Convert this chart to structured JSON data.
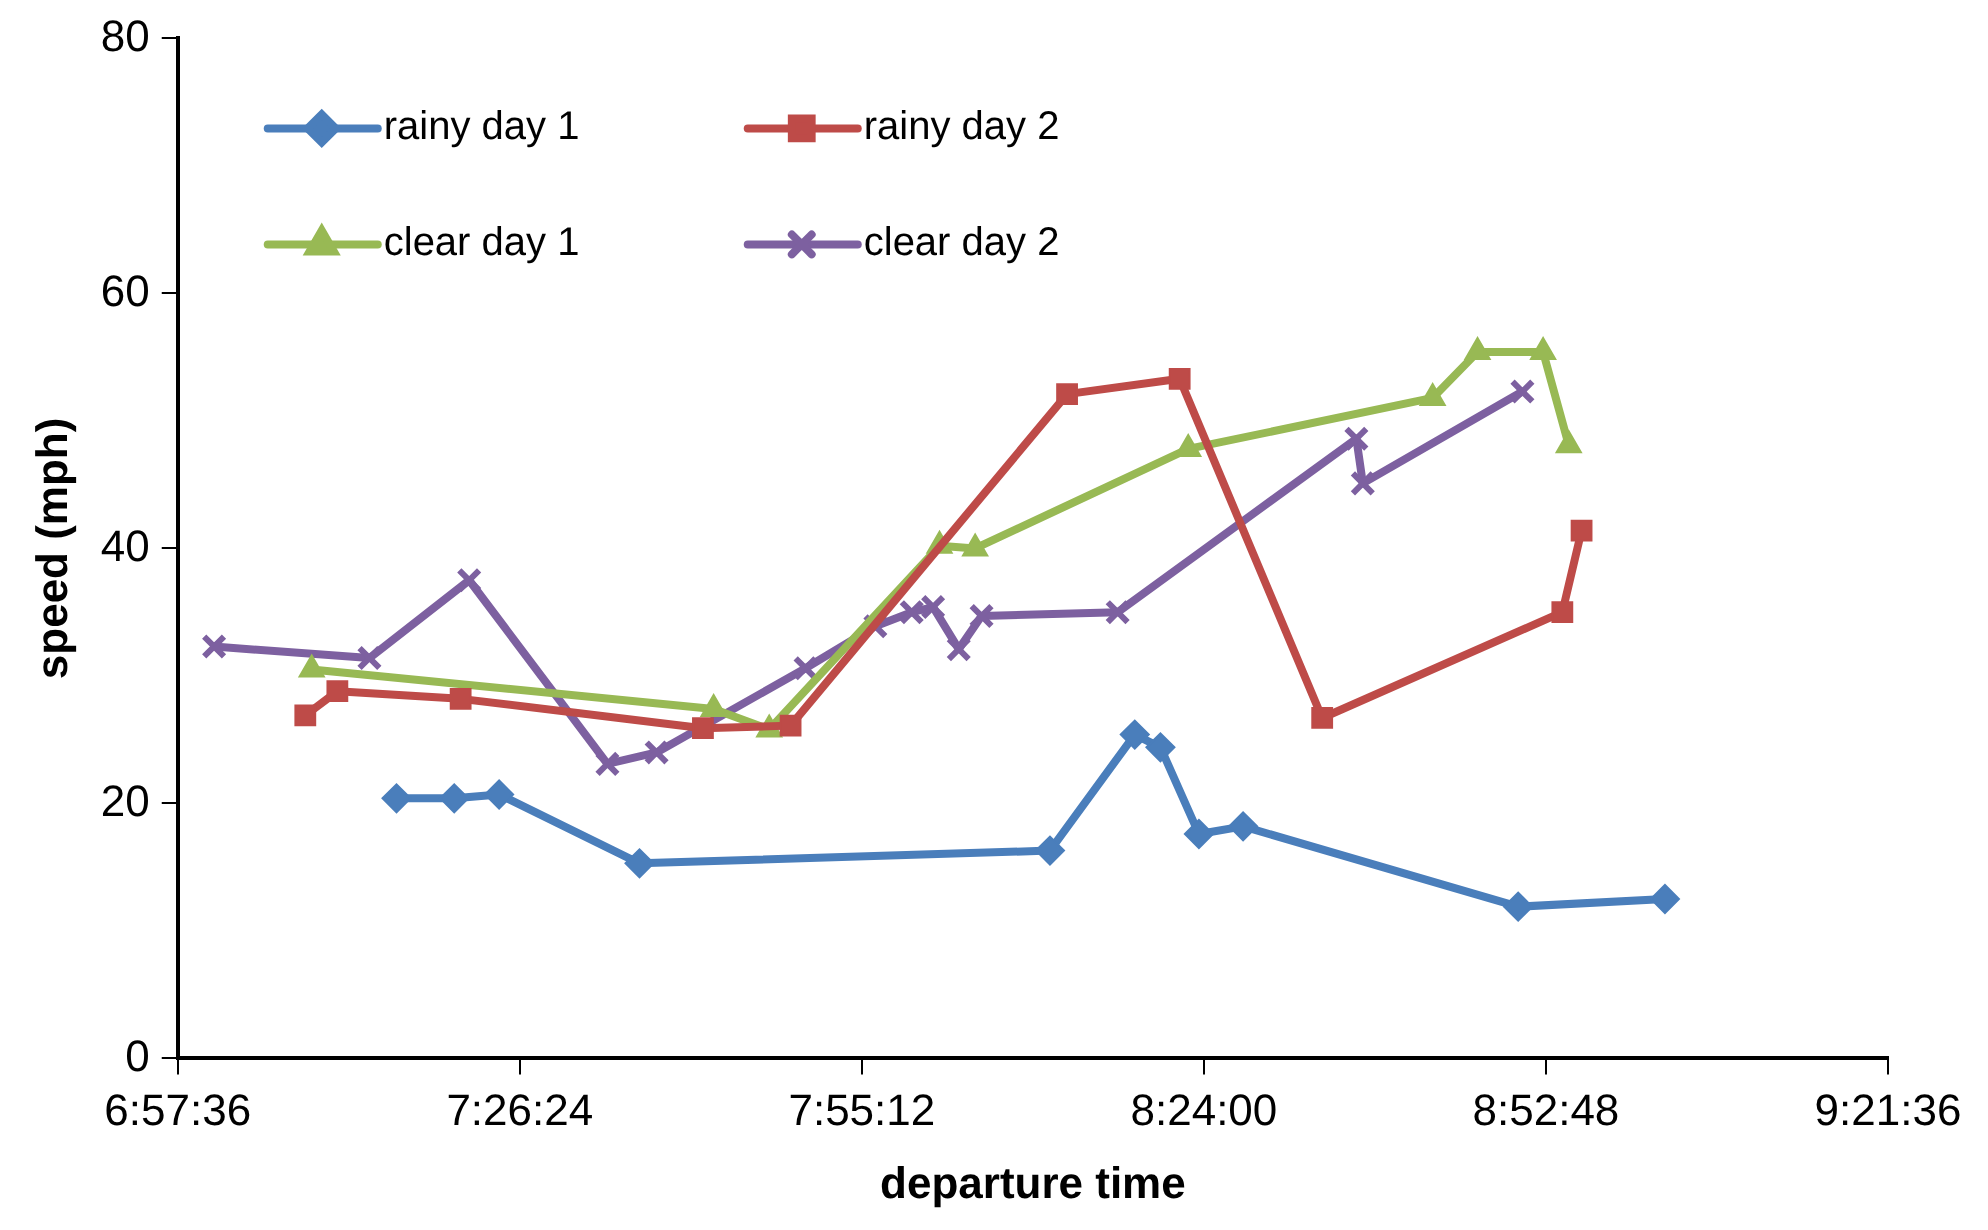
{
  "chart_data": {
    "type": "line",
    "xlabel": "departure time",
    "ylabel": "speed (mph)",
    "xlim": [
      6.96,
      9.36
    ],
    "xticks": [
      {
        "value": 6.96,
        "label": "6:57:36"
      },
      {
        "value": 7.44,
        "label": "7:26:24"
      },
      {
        "value": 7.92,
        "label": "7:55:12"
      },
      {
        "value": 8.4,
        "label": "8:24:00"
      },
      {
        "value": 8.88,
        "label": "8:52:48"
      },
      {
        "value": 9.36,
        "label": "9:21:36"
      }
    ],
    "ylim": [
      0,
      80
    ],
    "yticks": [
      0,
      20,
      40,
      60,
      80
    ],
    "grid": false,
    "legend": "top left",
    "line_style": "solid",
    "series": [
      {
        "name": "rainy day 1",
        "color": "#4a7ebb",
        "marker": "diamond",
        "x": [
          7.267,
          7.348,
          7.411,
          7.608,
          8.184,
          8.303,
          8.339,
          8.393,
          8.455,
          8.841,
          9.047
        ],
        "values": [
          20.4,
          20.4,
          20.7,
          15.3,
          16.3,
          25.4,
          24.4,
          17.6,
          18.2,
          11.9,
          12.5
        ]
      },
      {
        "name": "rainy day 2",
        "color": "#be4b48",
        "marker": "square",
        "x": [
          7.139,
          7.184,
          7.357,
          7.697,
          7.82,
          8.208,
          8.366,
          8.566,
          8.903,
          8.93
        ],
        "values": [
          26.9,
          28.8,
          28.2,
          25.9,
          26.1,
          52.1,
          53.3,
          26.7,
          35.0,
          41.4
        ]
      },
      {
        "name": "clear day 1",
        "color": "#98b954",
        "marker": "triangle",
        "x": [
          7.148,
          7.712,
          7.79,
          8.029,
          8.079,
          8.378,
          8.721,
          8.784,
          8.876,
          8.912
        ],
        "values": [
          30.5,
          27.4,
          25.8,
          40.2,
          40.0,
          47.8,
          51.8,
          55.4,
          55.4,
          48.1
        ]
      },
      {
        "name": "clear day 2",
        "color": "#7d60a0",
        "marker": "cross",
        "x": [
          7.011,
          7.229,
          7.369,
          7.563,
          7.632,
          7.841,
          7.939,
          7.99,
          8.02,
          8.056,
          8.088,
          8.279,
          8.614,
          8.623,
          8.847
        ],
        "values": [
          32.3,
          31.4,
          37.5,
          23.1,
          24.0,
          30.6,
          33.9,
          35.0,
          35.4,
          32.1,
          34.7,
          35.0,
          48.6,
          45.1,
          52.3
        ]
      }
    ]
  }
}
